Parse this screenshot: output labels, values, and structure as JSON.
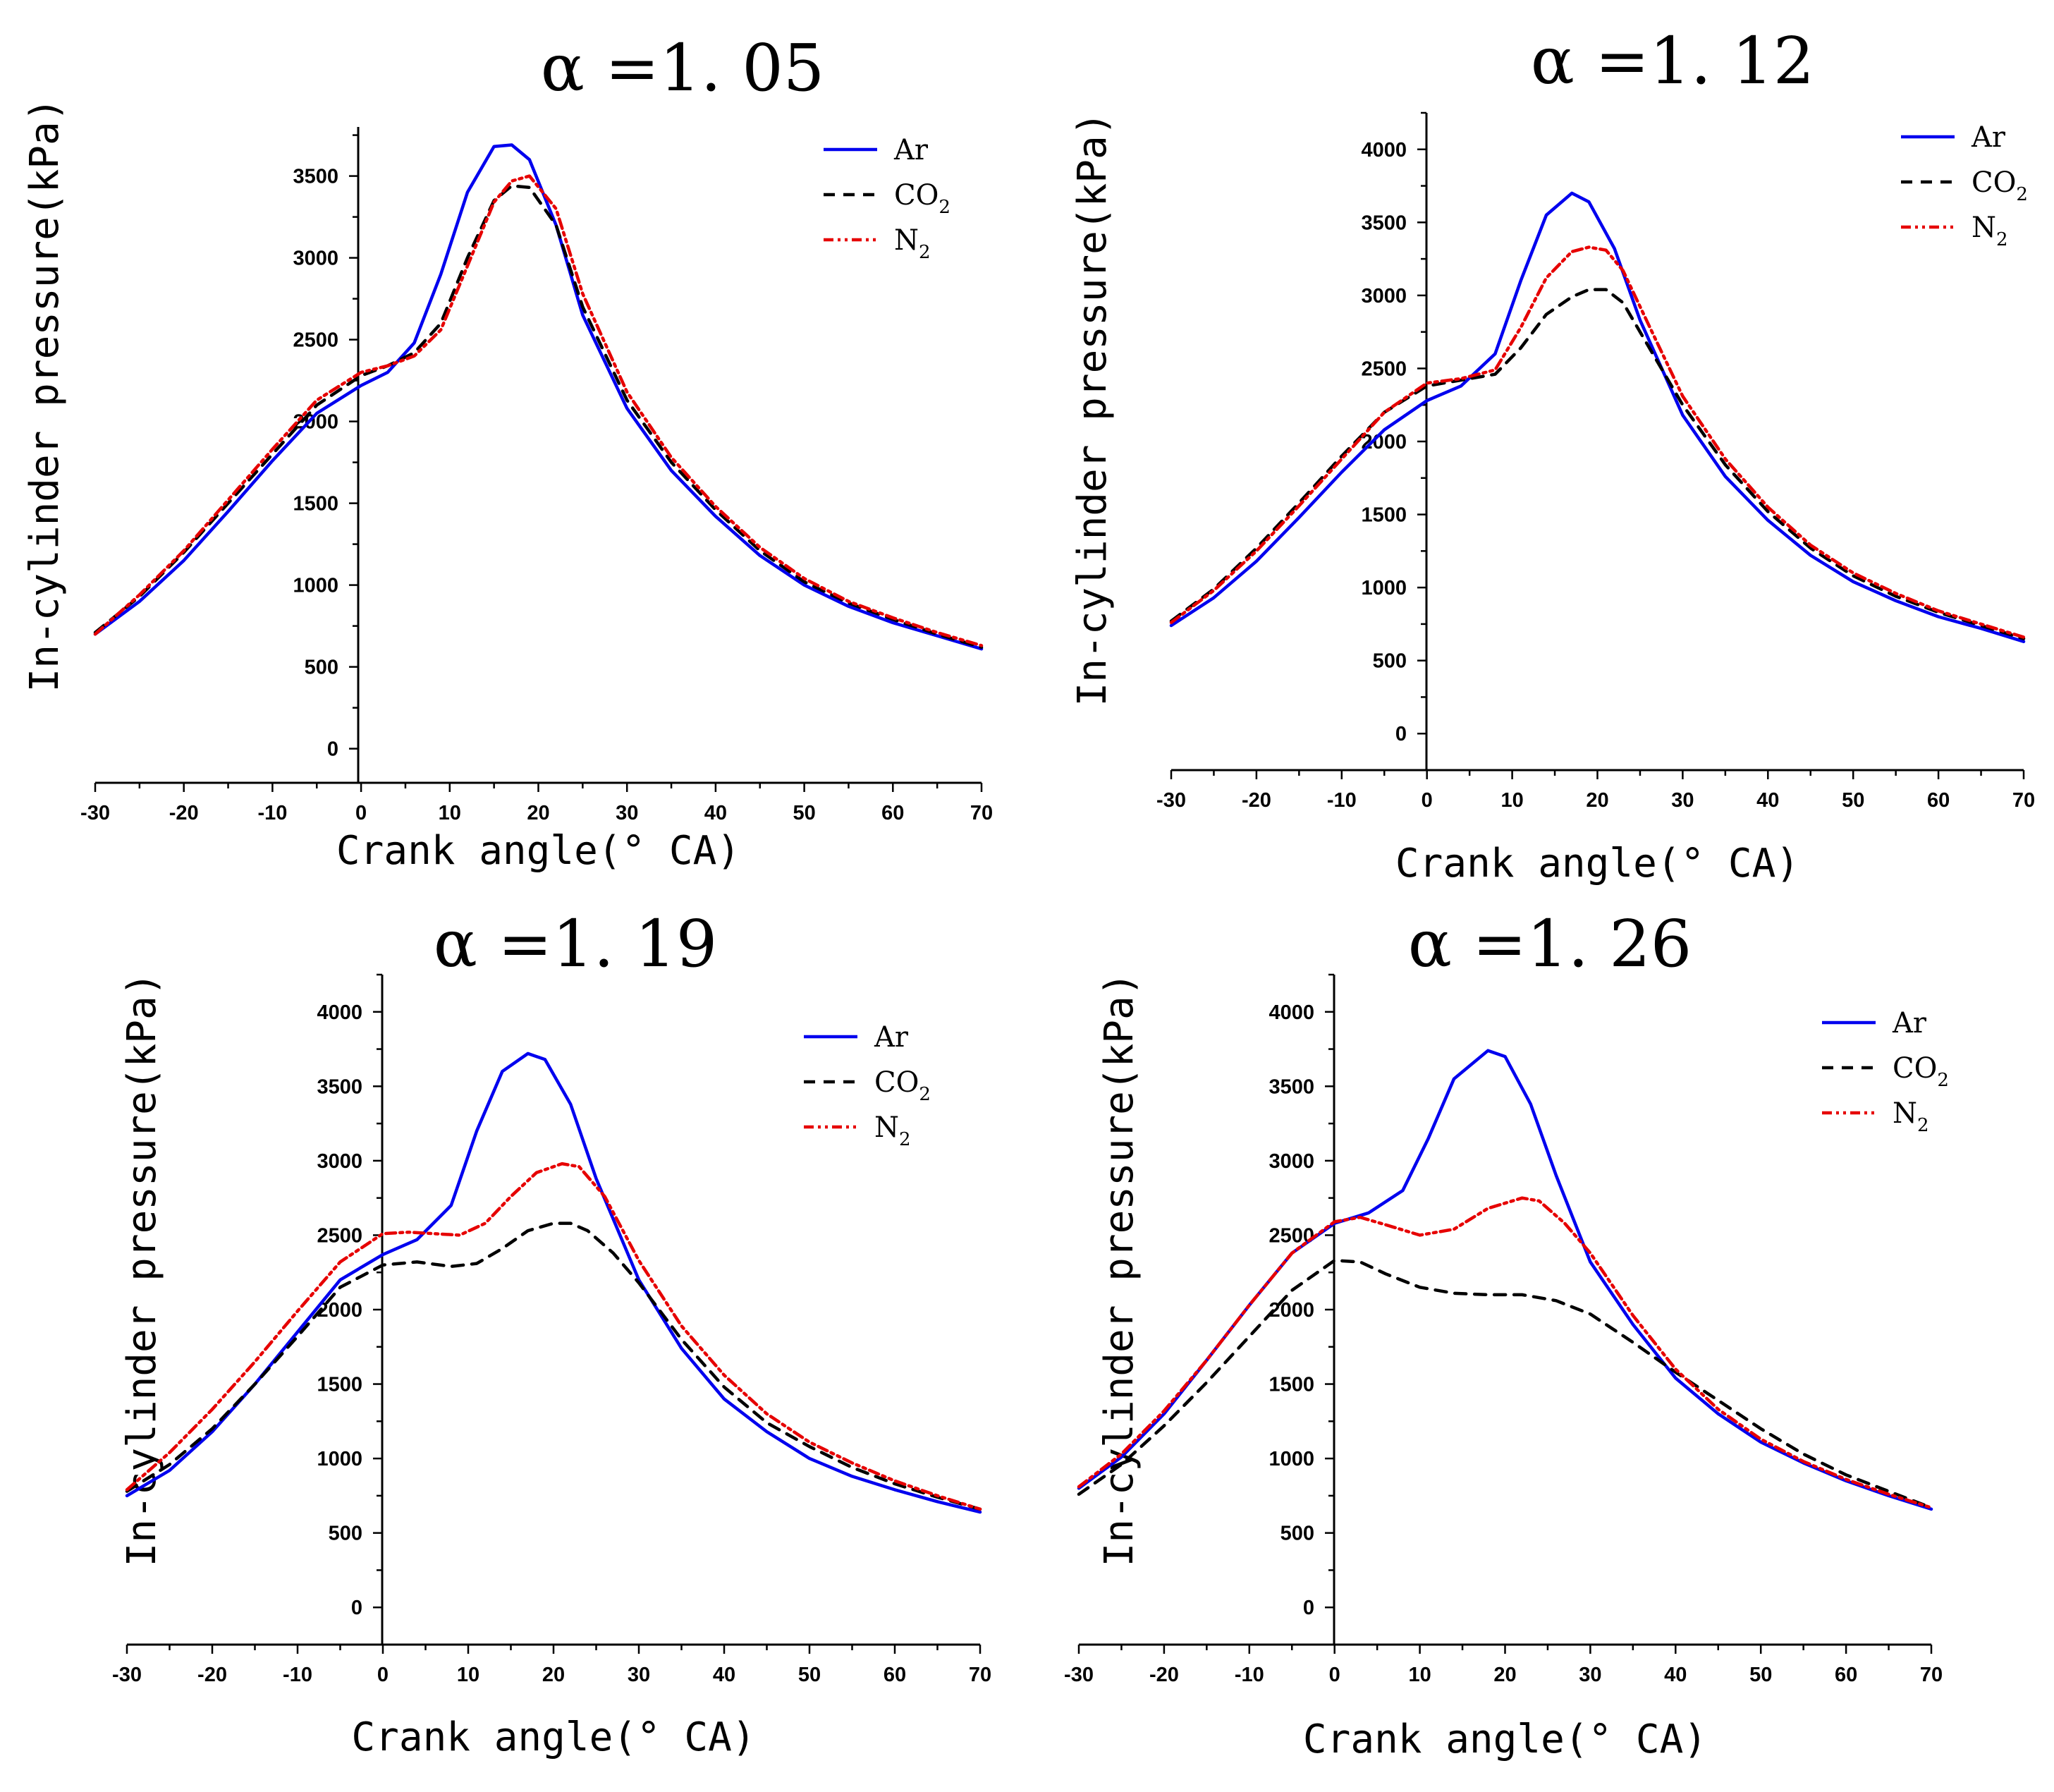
{
  "figure": {
    "legend_colors": {
      "Ar": "#0000ee",
      "CO2": "#000000",
      "N2": "#e60000"
    },
    "ylabel": "In-cylinder pressure(kPa)",
    "xlabel": "Crank angle(° CA)"
  },
  "chart_data": [
    {
      "type": "line",
      "title": "α =1. 05",
      "xlabel": "Crank angle(° CA)",
      "ylabel": "In-cylinder pressure(kPa)",
      "xlim": [
        -30,
        70
      ],
      "ylim": [
        -200,
        3800
      ],
      "xticks": [
        -30,
        -20,
        -10,
        0,
        10,
        20,
        30,
        40,
        50,
        60,
        70
      ],
      "yticks": [
        0,
        500,
        1000,
        1500,
        2000,
        2500,
        3000,
        3500
      ],
      "legend": {
        "position": "top-right",
        "entries": [
          {
            "name": "Ar",
            "base": "Ar",
            "sub": ""
          },
          {
            "name": "CO2",
            "base": "CO",
            "sub": "2"
          },
          {
            "name": "N2",
            "base": "N",
            "sub": "2"
          }
        ]
      },
      "series": [
        {
          "name": "Ar",
          "style": "solid",
          "x": [
            -30,
            -25,
            -20,
            -15,
            -10,
            -5,
            0,
            3,
            6,
            9,
            12,
            15,
            17,
            19,
            22,
            25,
            30,
            35,
            40,
            45,
            50,
            55,
            60,
            65,
            70
          ],
          "values": [
            700,
            900,
            1150,
            1450,
            1760,
            2050,
            2220,
            2300,
            2480,
            2900,
            3400,
            3680,
            3690,
            3600,
            3200,
            2650,
            2080,
            1700,
            1420,
            1180,
            1000,
            870,
            770,
            690,
            610
          ]
        },
        {
          "name": "CO2",
          "style": "dashed",
          "x": [
            -30,
            -25,
            -20,
            -15,
            -10,
            -5,
            0,
            3,
            6,
            9,
            12,
            15,
            17,
            19,
            22,
            25,
            30,
            35,
            40,
            45,
            50,
            55,
            60,
            65,
            70
          ],
          "values": [
            710,
            930,
            1200,
            1500,
            1800,
            2100,
            2280,
            2340,
            2420,
            2600,
            3000,
            3350,
            3440,
            3430,
            3200,
            2700,
            2130,
            1750,
            1460,
            1210,
            1020,
            890,
            790,
            700,
            620
          ]
        },
        {
          "name": "N2",
          "style": "dashdotdot",
          "x": [
            -30,
            -25,
            -20,
            -15,
            -10,
            -5,
            0,
            3,
            6,
            9,
            12,
            15,
            17,
            19,
            22,
            25,
            30,
            35,
            40,
            45,
            50,
            55,
            60,
            65,
            70
          ],
          "values": [
            700,
            940,
            1210,
            1520,
            1830,
            2130,
            2300,
            2340,
            2400,
            2560,
            2950,
            3340,
            3470,
            3500,
            3300,
            2780,
            2180,
            1780,
            1480,
            1230,
            1040,
            900,
            800,
            710,
            630
          ]
        }
      ]
    },
    {
      "type": "line",
      "title": "α =1. 12",
      "xlabel": "Crank angle(° CA)",
      "ylabel": "In-cylinder pressure(kPa)",
      "xlim": [
        -30,
        70
      ],
      "ylim": [
        -250,
        4250
      ],
      "xticks": [
        -30,
        -20,
        -10,
        0,
        10,
        20,
        30,
        40,
        50,
        60,
        70
      ],
      "yticks": [
        0,
        500,
        1000,
        1500,
        2000,
        2500,
        3000,
        3500,
        4000
      ],
      "legend": {
        "position": "top-right",
        "entries": [
          {
            "name": "Ar",
            "base": "Ar",
            "sub": ""
          },
          {
            "name": "CO2",
            "base": "CO",
            "sub": "2"
          },
          {
            "name": "N2",
            "base": "N",
            "sub": "2"
          }
        ]
      },
      "series": [
        {
          "name": "Ar",
          "style": "solid",
          "x": [
            -30,
            -25,
            -20,
            -15,
            -10,
            -5,
            0,
            4,
            8,
            11,
            14,
            17,
            19,
            22,
            25,
            30,
            35,
            40,
            45,
            50,
            55,
            60,
            65,
            70
          ],
          "values": [
            740,
            930,
            1180,
            1480,
            1790,
            2080,
            2280,
            2380,
            2600,
            3100,
            3550,
            3700,
            3640,
            3320,
            2830,
            2180,
            1760,
            1460,
            1220,
            1040,
            910,
            800,
            720,
            630
          ]
        },
        {
          "name": "CO2",
          "style": "dashed",
          "x": [
            -30,
            -25,
            -20,
            -15,
            -10,
            -5,
            0,
            4,
            8,
            11,
            14,
            17,
            19,
            21,
            23,
            26,
            30,
            35,
            40,
            45,
            50,
            55,
            60,
            65,
            70
          ],
          "values": [
            770,
            990,
            1270,
            1580,
            1900,
            2200,
            2380,
            2420,
            2460,
            2640,
            2870,
            2990,
            3040,
            3040,
            2950,
            2650,
            2250,
            1840,
            1520,
            1270,
            1080,
            940,
            830,
            740,
            650
          ]
        },
        {
          "name": "N2",
          "style": "dashdotdot",
          "x": [
            -30,
            -25,
            -20,
            -15,
            -10,
            -5,
            0,
            4,
            8,
            11,
            14,
            17,
            19,
            21,
            23,
            26,
            30,
            35,
            40,
            45,
            50,
            55,
            60,
            65,
            70
          ],
          "values": [
            760,
            980,
            1250,
            1560,
            1880,
            2200,
            2400,
            2430,
            2490,
            2780,
            3120,
            3300,
            3330,
            3310,
            3170,
            2800,
            2310,
            1880,
            1550,
            1290,
            1100,
            960,
            840,
            750,
            660
          ]
        }
      ]
    },
    {
      "type": "line",
      "title": "α =1. 19",
      "xlabel": "Crank angle(° CA)",
      "ylabel": "In-cylinder pressure(kPa)",
      "xlim": [
        -30,
        70
      ],
      "ylim": [
        -250,
        4250
      ],
      "xticks": [
        -30,
        -20,
        -10,
        0,
        10,
        20,
        30,
        40,
        50,
        60,
        70
      ],
      "yticks": [
        0,
        500,
        1000,
        1500,
        2000,
        2500,
        3000,
        3500,
        4000
      ],
      "legend": {
        "position": "top-right",
        "entries": [
          {
            "name": "Ar",
            "base": "Ar",
            "sub": ""
          },
          {
            "name": "CO2",
            "base": "CO",
            "sub": "2"
          },
          {
            "name": "N2",
            "base": "N",
            "sub": "2"
          }
        ]
      },
      "series": [
        {
          "name": "Ar",
          "style": "solid",
          "x": [
            -30,
            -25,
            -20,
            -15,
            -10,
            -5,
            0,
            4,
            8,
            11,
            14,
            17,
            19,
            22,
            25,
            30,
            35,
            40,
            45,
            50,
            55,
            60,
            65,
            70
          ],
          "values": [
            750,
            920,
            1180,
            1500,
            1850,
            2200,
            2370,
            2470,
            2700,
            3200,
            3600,
            3720,
            3680,
            3380,
            2880,
            2200,
            1740,
            1400,
            1180,
            1000,
            880,
            790,
            710,
            640
          ]
        },
        {
          "name": "CO2",
          "style": "dashed",
          "x": [
            -30,
            -25,
            -20,
            -15,
            -10,
            -5,
            0,
            4,
            8,
            11,
            14,
            17,
            20,
            22,
            24,
            27,
            30,
            35,
            40,
            45,
            50,
            55,
            60,
            65,
            70
          ],
          "values": [
            780,
            960,
            1200,
            1500,
            1820,
            2150,
            2300,
            2320,
            2290,
            2310,
            2410,
            2530,
            2580,
            2580,
            2530,
            2380,
            2180,
            1800,
            1480,
            1240,
            1080,
            940,
            830,
            740,
            660
          ]
        },
        {
          "name": "N2",
          "style": "dashdotdot",
          "x": [
            -30,
            -25,
            -20,
            -15,
            -10,
            -5,
            0,
            3,
            6,
            9,
            12,
            15,
            18,
            21,
            23,
            26,
            30,
            35,
            40,
            45,
            50,
            55,
            60,
            65,
            70
          ],
          "values": [
            790,
            1040,
            1330,
            1650,
            1990,
            2320,
            2510,
            2520,
            2510,
            2500,
            2580,
            2760,
            2920,
            2980,
            2960,
            2760,
            2330,
            1890,
            1560,
            1300,
            1110,
            970,
            850,
            750,
            660
          ]
        }
      ]
    },
    {
      "type": "line",
      "title": "α =1. 26",
      "xlabel": "Crank angle(° CA)",
      "ylabel": "In-cylinder pressure(kPa)",
      "xlim": [
        -30,
        70
      ],
      "ylim": [
        -250,
        4250
      ],
      "xticks": [
        -30,
        -20,
        -10,
        0,
        10,
        20,
        30,
        40,
        50,
        60,
        70
      ],
      "yticks": [
        0,
        500,
        1000,
        1500,
        2000,
        2500,
        3000,
        3500,
        4000
      ],
      "legend": {
        "position": "top-right",
        "entries": [
          {
            "name": "Ar",
            "base": "Ar",
            "sub": ""
          },
          {
            "name": "CO2",
            "base": "CO",
            "sub": "2"
          },
          {
            "name": "N2",
            "base": "N",
            "sub": "2"
          }
        ]
      },
      "series": [
        {
          "name": "Ar",
          "style": "solid",
          "x": [
            -30,
            -25,
            -20,
            -15,
            -10,
            -5,
            0,
            4,
            8,
            11,
            14,
            18,
            20,
            23,
            26,
            30,
            35,
            40,
            45,
            50,
            55,
            60,
            65,
            70
          ],
          "values": [
            800,
            1010,
            1300,
            1660,
            2030,
            2380,
            2580,
            2650,
            2800,
            3150,
            3550,
            3740,
            3700,
            3380,
            2900,
            2320,
            1900,
            1540,
            1300,
            1110,
            970,
            850,
            750,
            660
          ]
        },
        {
          "name": "CO2",
          "style": "dashed",
          "x": [
            -30,
            -25,
            -20,
            -15,
            -10,
            -5,
            0,
            3,
            6,
            10,
            14,
            18,
            22,
            26,
            30,
            35,
            40,
            45,
            50,
            55,
            60,
            65,
            70
          ],
          "values": [
            760,
            960,
            1220,
            1510,
            1820,
            2130,
            2330,
            2320,
            2240,
            2150,
            2110,
            2100,
            2100,
            2060,
            1970,
            1780,
            1580,
            1390,
            1200,
            1030,
            890,
            780,
            670
          ]
        },
        {
          "name": "N2",
          "style": "dashdotdot",
          "x": [
            -30,
            -25,
            -20,
            -15,
            -10,
            -5,
            0,
            3,
            6,
            10,
            14,
            18,
            22,
            24,
            27,
            30,
            35,
            40,
            45,
            50,
            55,
            60,
            65,
            70
          ],
          "values": [
            810,
            1030,
            1320,
            1660,
            2030,
            2380,
            2590,
            2620,
            2570,
            2500,
            2540,
            2680,
            2750,
            2730,
            2580,
            2380,
            1960,
            1600,
            1330,
            1130,
            980,
            860,
            760,
            670
          ]
        }
      ]
    }
  ]
}
